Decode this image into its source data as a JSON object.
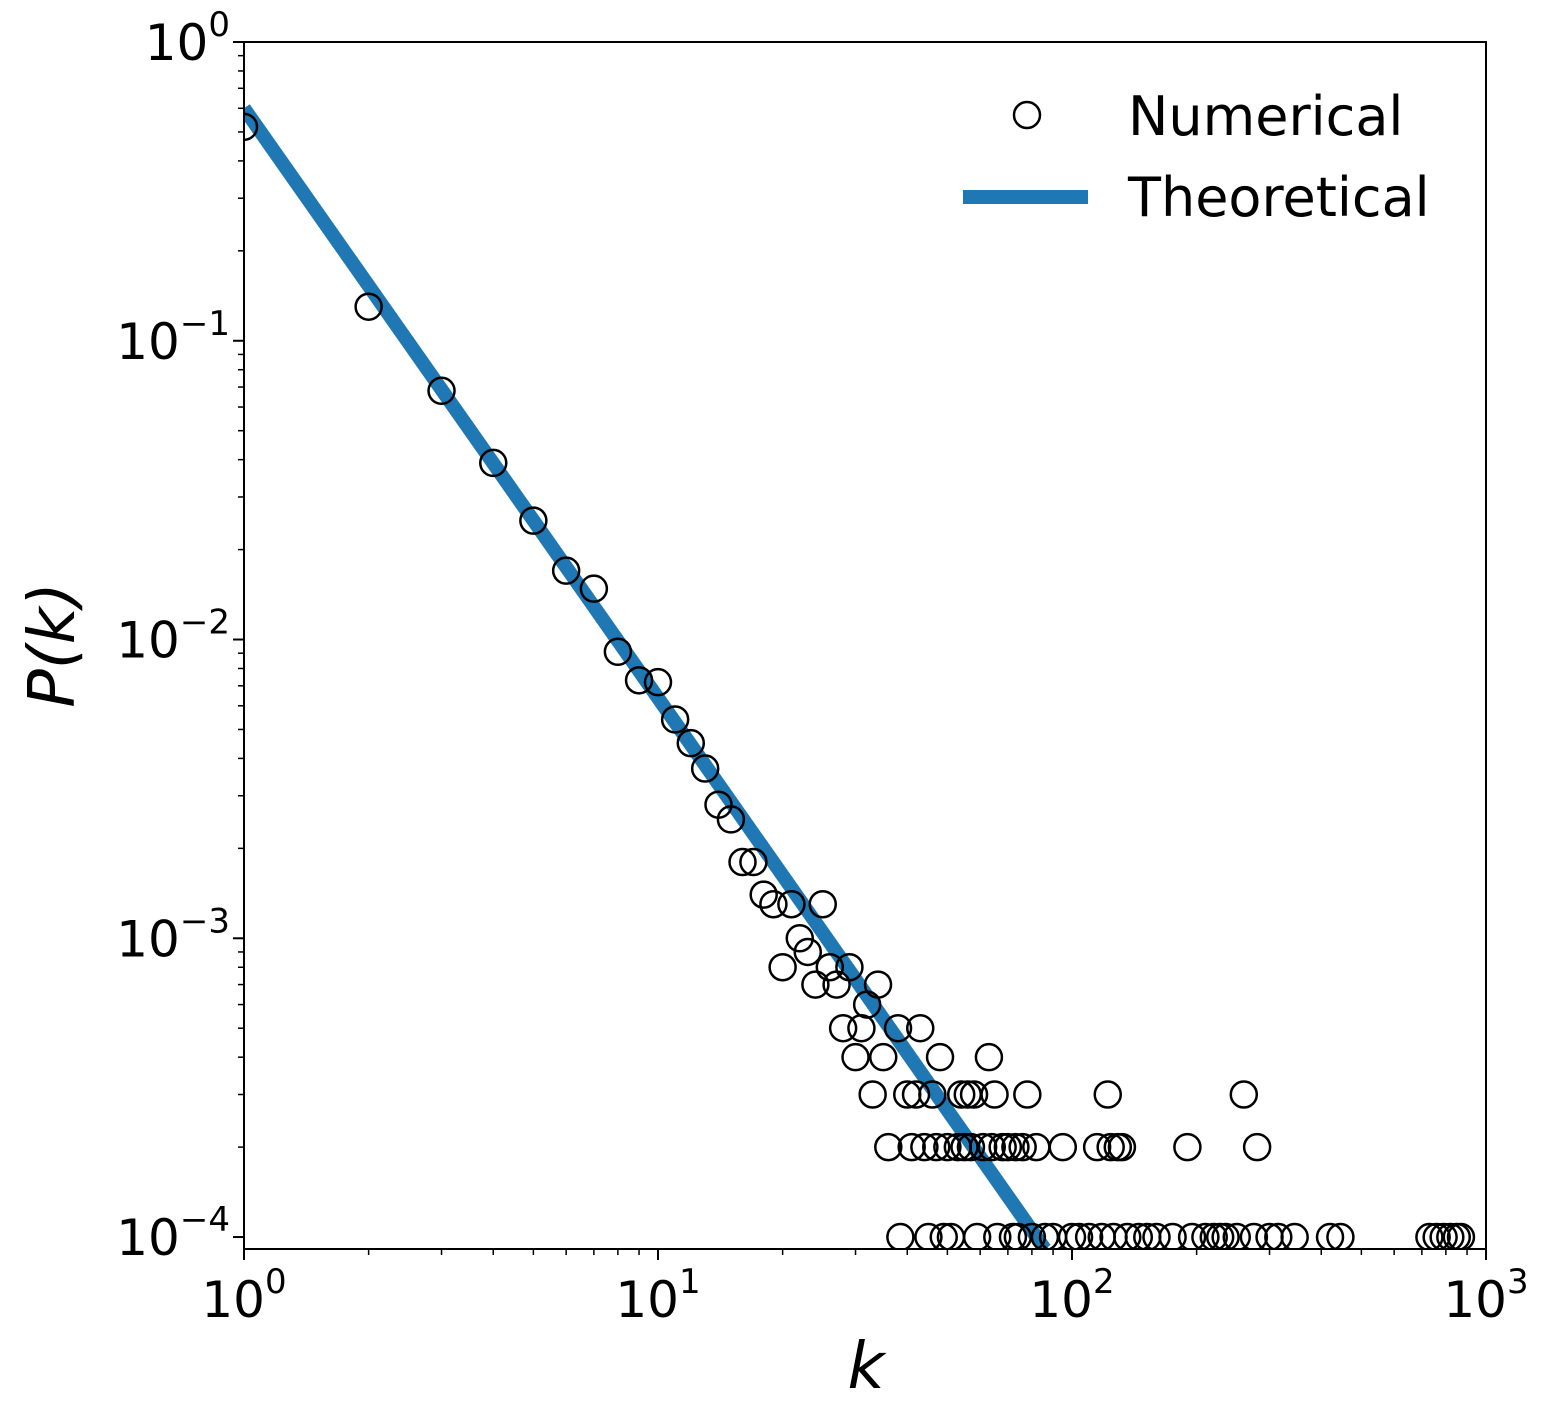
{
  "chart_data": {
    "type": "scatter",
    "x_scale": "log",
    "y_scale": "log",
    "xlim": [
      1,
      1000
    ],
    "ylim": [
      9.12e-05,
      1
    ],
    "xlabel": "k",
    "ylabel": "P(k)",
    "grid": false,
    "legend_position": "top-right",
    "x_ticks": [
      {
        "base": "10",
        "exp": "0",
        "value": 1
      },
      {
        "base": "10",
        "exp": "1",
        "value": 10
      },
      {
        "base": "10",
        "exp": "2",
        "value": 100
      },
      {
        "base": "10",
        "exp": "3",
        "value": 1000
      }
    ],
    "y_ticks": [
      {
        "base": "10",
        "exp": "0",
        "value": 1
      },
      {
        "base": "10",
        "exp": "−1",
        "value": 0.1
      },
      {
        "base": "10",
        "exp": "−2",
        "value": 0.01
      },
      {
        "base": "10",
        "exp": "−3",
        "value": 0.001
      },
      {
        "base": "10",
        "exp": "−4",
        "value": 0.0001
      }
    ],
    "series": [
      {
        "name": "Numerical",
        "style": "hollow-circle",
        "color": "#000000",
        "points": [
          [
            1,
            0.52
          ],
          [
            2,
            0.13
          ],
          [
            3,
            0.068
          ],
          [
            4,
            0.039
          ],
          [
            5,
            0.025
          ],
          [
            6,
            0.017
          ],
          [
            7,
            0.0148
          ],
          [
            8,
            0.0091
          ],
          [
            9,
            0.0073
          ],
          [
            10,
            0.0072
          ],
          [
            11,
            0.0054
          ],
          [
            12,
            0.0045
          ],
          [
            13,
            0.0037
          ],
          [
            14,
            0.0028
          ],
          [
            15,
            0.0025
          ],
          [
            16,
            0.0018
          ],
          [
            17,
            0.0018
          ],
          [
            18,
            0.0014
          ],
          [
            19,
            0.0013
          ],
          [
            20,
            0.0008
          ],
          [
            21,
            0.0013
          ],
          [
            22,
            0.001
          ],
          [
            23,
            0.0009
          ],
          [
            24,
            0.0007
          ],
          [
            25,
            0.0013
          ],
          [
            26,
            0.0008
          ],
          [
            27,
            0.0007
          ],
          [
            28,
            0.0005
          ],
          [
            29,
            0.0008
          ],
          [
            30,
            0.0004
          ],
          [
            31,
            0.0005
          ],
          [
            32,
            0.0006
          ],
          [
            33,
            0.0003
          ],
          [
            34,
            0.0007
          ],
          [
            35,
            0.0004
          ],
          [
            36,
            0.0002
          ],
          [
            38,
            0.0005
          ],
          [
            38.5,
            0.0001
          ],
          [
            40,
            0.0003
          ],
          [
            41,
            0.0002
          ],
          [
            42,
            0.0003
          ],
          [
            43,
            0.0005
          ],
          [
            44,
            0.0002
          ],
          [
            45,
            0.0001
          ],
          [
            46,
            0.0003
          ],
          [
            47,
            0.0002
          ],
          [
            48,
            0.0004
          ],
          [
            49,
            0.0001
          ],
          [
            50,
            0.0002
          ],
          [
            51,
            0.0001
          ],
          [
            53,
            0.0002
          ],
          [
            54,
            0.0003
          ],
          [
            55,
            0.0002
          ],
          [
            56,
            0.0003
          ],
          [
            57,
            0.0002
          ],
          [
            58,
            0.0003
          ],
          [
            59,
            0.0001
          ],
          [
            61,
            0.0002
          ],
          [
            63,
            0.0004
          ],
          [
            64,
            0.0002
          ],
          [
            65,
            0.0003
          ],
          [
            66,
            0.0001
          ],
          [
            68,
            0.0002
          ],
          [
            70,
            0.0002
          ],
          [
            72,
            0.0001
          ],
          [
            73,
            0.0002
          ],
          [
            74,
            0.0001
          ],
          [
            76,
            0.0002
          ],
          [
            78,
            0.0003
          ],
          [
            80,
            0.0001
          ],
          [
            82,
            0.0002
          ],
          [
            86,
            0.0001
          ],
          [
            90,
            0.0001
          ],
          [
            95,
            0.0002
          ],
          [
            100,
            0.0001
          ],
          [
            104,
            0.0001
          ],
          [
            110,
            0.0001
          ],
          [
            115,
            0.0002
          ],
          [
            118,
            0.0001
          ],
          [
            122,
            0.0003
          ],
          [
            124,
            0.0002
          ],
          [
            126,
            0.0001
          ],
          [
            129,
            0.0002
          ],
          [
            132,
            0.0002
          ],
          [
            136,
            0.0001
          ],
          [
            145,
            0.0001
          ],
          [
            152,
            0.0001
          ],
          [
            160,
            0.0001
          ],
          [
            175,
            0.0001
          ],
          [
            190,
            0.0002
          ],
          [
            195,
            0.0001
          ],
          [
            210,
            0.0001
          ],
          [
            220,
            0.0001
          ],
          [
            228,
            0.0001
          ],
          [
            235,
            0.0001
          ],
          [
            250,
            0.0001
          ],
          [
            260,
            0.0003
          ],
          [
            275,
            0.0001
          ],
          [
            280,
            0.0002
          ],
          [
            300,
            0.0001
          ],
          [
            315,
            0.0001
          ],
          [
            345,
            0.0001
          ],
          [
            420,
            0.0001
          ],
          [
            445,
            0.0001
          ],
          [
            730,
            0.0001
          ],
          [
            760,
            0.0001
          ],
          [
            790,
            0.0001
          ],
          [
            820,
            0.0001
          ],
          [
            850,
            0.0001
          ],
          [
            870,
            0.0001
          ]
        ]
      },
      {
        "name": "Theoretical",
        "style": "line",
        "color": "#1f77b4",
        "points": [
          [
            1,
            0.6
          ],
          [
            86,
            9.12e-05
          ]
        ]
      }
    ]
  }
}
